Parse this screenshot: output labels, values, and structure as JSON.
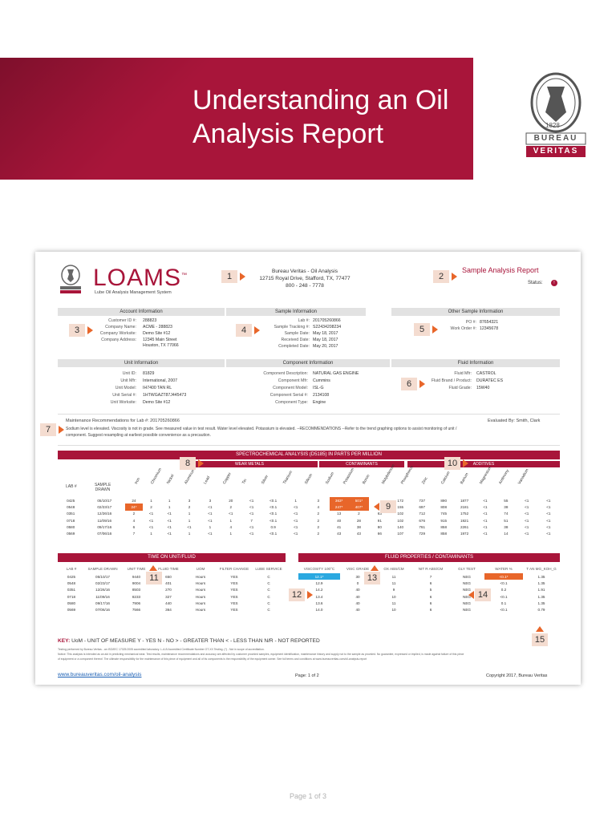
{
  "banner": {
    "title_line1": "Understanding an Oil",
    "title_line2": "Analysis Report"
  },
  "bv_logo": {
    "top_text": "BUREAU VERITAS",
    "year": "1828",
    "word1": "BUREAU",
    "word2": "VERITAS"
  },
  "colors": {
    "brand_red": "#a8153a",
    "accent_orange": "#e8662a",
    "highlight_blue": "#2aa8e0",
    "badge_bg": "#f4dcd0"
  },
  "report": {
    "brand": {
      "name": "LOAMS",
      "tm": "™",
      "subtitle": "Lube Oil Analysis Management System"
    },
    "lab": {
      "name": "Bureau Veritas - Oil Analysis",
      "address": "12715 Royal Drive, Stafford, TX, 77477",
      "phone": "800 - 248 - 7778"
    },
    "title": "Sample Analysis Report",
    "status_label": "Status:",
    "status_icon": "!",
    "account": {
      "heading": "Account Information",
      "rows": [
        {
          "label": "Customer ID #:",
          "value": "288823"
        },
        {
          "label": "Company Name:",
          "value": "ACME - 288823"
        },
        {
          "label": "Company Worksite:",
          "value": "Demo Site #12"
        },
        {
          "label": "Company Address:",
          "value": "12345 Main Street"
        },
        {
          "label": "",
          "value": "Houston, TX 77066"
        }
      ]
    },
    "sample": {
      "heading": "Sample Information",
      "rows": [
        {
          "label": "Lab #:",
          "value": "201705260866"
        },
        {
          "label": "Sample Tracking #:",
          "value": "S22434208234"
        },
        {
          "label": "Sample Date:",
          "value": "May 18, 2017"
        },
        {
          "label": "Received Date:",
          "value": "May 18, 2017"
        },
        {
          "label": "Completed Date:",
          "value": "May 20, 2017"
        }
      ]
    },
    "other": {
      "heading": "Other Sample Information",
      "rows": [
        {
          "label": "PO #:",
          "value": "87654321"
        },
        {
          "label": "Work Order #:",
          "value": "12345678"
        }
      ]
    },
    "unit": {
      "heading": "Unit Information",
      "rows": [
        {
          "label": "Unit ID:",
          "value": "81829"
        },
        {
          "label": "Unit Mfr:",
          "value": "International, 2007"
        },
        {
          "label": "Unit Model:",
          "value": "IH7400 TAN RL"
        },
        {
          "label": "Unit Serial #:",
          "value": "1HTWGAZT87J445473"
        },
        {
          "label": "Unit Worksite:",
          "value": "Demo Site #12"
        }
      ]
    },
    "component": {
      "heading": "Component Information",
      "rows": [
        {
          "label": "Component Description:",
          "value": "NATURAL GAS ENGINE"
        },
        {
          "label": "Component Mfr:",
          "value": "Cummins"
        },
        {
          "label": "Component Model:",
          "value": "ISL-G"
        },
        {
          "label": "Component Serial #:",
          "value": "2134108"
        },
        {
          "label": "Component Type:",
          "value": "Engine"
        }
      ]
    },
    "fluid": {
      "heading": "Fluid Information",
      "rows": [
        {
          "label": "Fluid Mfr:",
          "value": "CASTROL"
        },
        {
          "label": "Fluid Brand / Product:",
          "value": "DURATEC ES"
        },
        {
          "label": "Fluid Grade:",
          "value": "15W40"
        }
      ]
    },
    "maintenance": {
      "heading": "Maintenance Recommendations for Lab #: 201705260866",
      "evaluated": "Evaluated By: Smith, Clark",
      "line1": "Sodium level is elevated. Viscosity is not in grade. See measured value in test result. Water level elevated. Potassium is elevated. --RECOMMENDATIONS --Refer to the trend graphing options to assist monitoring of unit /",
      "line2": "component. Suggest resampling at earliest possible convenience as a precaution."
    },
    "spectro": {
      "title": "SPECTROCHEMICAL ANALYSIS (D5185) IN PARTS PER MILLION",
      "group_wear": "WEAR METALS",
      "group_contam": "CONTAMINANTS",
      "group_add": "ADDITIVES",
      "headers": [
        "LAB #",
        "SAMPLE DRAWN",
        "Iron",
        "Chromium",
        "Nickel",
        "Aluminum",
        "Lead",
        "Copper",
        "Tin",
        "Silver",
        "Titanium",
        "Silicon",
        "Sodium",
        "Potassium",
        "Boron",
        "Molybdenum",
        "Phosphorus",
        "Zinc",
        "Calcium",
        "Barium",
        "Magnesium",
        "Antimony",
        "Vanadium"
      ],
      "rows": [
        [
          "0425",
          "05/10/17",
          "24",
          "1",
          "1",
          "3",
          "3",
          "20",
          "<1",
          "<0.1",
          "1",
          "3",
          "363*",
          "501*",
          "",
          "172",
          "737",
          "890",
          "1877",
          "<1",
          "55",
          "<1",
          "<1"
        ],
        [
          "0548",
          "02/23/17",
          "24*",
          "2",
          "1",
          "2",
          "<1",
          "2",
          "<1",
          "<0.1",
          "<1",
          "4",
          "247*",
          "407*",
          "",
          "155",
          "697",
          "808",
          "2181",
          "<1",
          "38",
          "<1",
          "<1"
        ],
        [
          "0351",
          "12/26/16",
          "2",
          "<1",
          "<1",
          "1",
          "<1",
          "<1",
          "<1",
          "<0.1",
          "<1",
          "2",
          "13",
          "2",
          "63",
          "102",
          "712",
          "745",
          "1752",
          "<1",
          "74",
          "<1",
          "<1"
        ],
        [
          "0718",
          "11/09/16",
          "4",
          "<1",
          "<1",
          "1",
          "<1",
          "1",
          "7",
          "<0.1",
          "<1",
          "2",
          "40",
          "28",
          "91",
          "102",
          "676",
          "915",
          "1921",
          "<1",
          "51",
          "<1",
          "<1"
        ],
        [
          "0580",
          "09/17/16",
          "6",
          "<1",
          "<1",
          "<1",
          "1",
          "4",
          "<1",
          "0.9",
          "<1",
          "2",
          "41",
          "38",
          "80",
          "140",
          "761",
          "858",
          "2261",
          "<1",
          "38",
          "<1",
          "<1"
        ],
        [
          "0569",
          "07/06/16",
          "7",
          "1",
          "<1",
          "1",
          "<1",
          "1",
          "<1",
          "<0.1",
          "<1",
          "2",
          "43",
          "43",
          "66",
          "107",
          "729",
          "858",
          "1972",
          "<1",
          "14",
          "<1",
          "<1"
        ]
      ]
    },
    "time_table": {
      "title": "TIME ON UNIT/FLUID",
      "headers": [
        "LAB #",
        "SAMPLE DRAWN",
        "UNIT TIME",
        "FLUID TIME",
        "UOM",
        "FILTER CHANGE",
        "LUBE SERVICE"
      ],
      "rows": [
        [
          "0425",
          "05/10/17",
          "9440",
          "650",
          "Hours",
          "YES",
          "C"
        ],
        [
          "0548",
          "02/23/17",
          "9004",
          "401",
          "Hours",
          "YES",
          "C"
        ],
        [
          "0351",
          "12/26/16",
          "8503",
          "270",
          "Hours",
          "YES",
          "C"
        ],
        [
          "0718",
          "11/09/16",
          "8233",
          "327",
          "Hours",
          "YES",
          "C"
        ],
        [
          "0580",
          "09/17/16",
          "7906",
          "440",
          "Hours",
          "YES",
          "C"
        ],
        [
          "0569",
          "07/06/16",
          "7566",
          "364",
          "Hours",
          "YES",
          "C"
        ]
      ]
    },
    "fluid_table": {
      "title": "FLUID PROPERTIES / CONTAMINANTS",
      "headers": [
        "VISCOSITY 100°C",
        "VISC GRADE",
        "OX ABS/CM",
        "NIT R ABS/CM",
        "GLY TEST",
        "WATER %",
        "T AN MG_KOH_G"
      ],
      "rows": [
        [
          "12.1*",
          "30",
          "11",
          "7",
          "NEG",
          "<0.1*",
          "1.35"
        ],
        [
          "12.9",
          "0",
          "11",
          "6",
          "NEG",
          "<0.1",
          "1.35"
        ],
        [
          "14.2",
          "40",
          "9",
          "5",
          "NEG",
          "0.2",
          "1.91"
        ],
        [
          "13.4",
          "40",
          "10",
          "6",
          "NEG",
          "<0.1",
          "1.35"
        ],
        [
          "13.6",
          "40",
          "11",
          "6",
          "NEG",
          "0.1",
          "1.35"
        ],
        [
          "14.0",
          "40",
          "10",
          "6",
          "NEG",
          "<0.1",
          "0.79"
        ]
      ]
    },
    "key": {
      "label": "KEY:",
      "text": "UoM - UNIT OF MEASURE   Y - YES   N - NO   > - GREATER THAN   < - LESS THAN   N/R - NOT REPORTED"
    },
    "fineprint1": "Testing performed by Bureau Veritas - an ISO/IEC 17025:2005 accredited laboratory. L-A-B Accredited Certificate Number OT-XX Testing. (*) - Not in scope of accreditation.",
    "fineprint2": "Notice: This analysis is intended as an aid in predicting mechanical wear. Test results, maintenance recommendations and accuracy are affected by customer provided samples, equipment identification, maintenance history and supply not to the sample as provided. No guarantee, expressed or implied, is made against failure of this piece",
    "fineprint3": "of equipment or a component thereof. The ultimate responsibility for the maintenance of this piece of equipment and all of its components is the responsibility of the equipment owner. See full terms and conditions at www.bureauveritas.com/oil-analysis-report",
    "footer_link": "www.bureauveritas.com/oil-analysis",
    "footer_page": "Page: 1 of 2",
    "footer_copy": "Copyright 2017, Bureau Veritas"
  },
  "callouts": [
    "1",
    "2",
    "3",
    "4",
    "5",
    "6",
    "7",
    "8",
    "9",
    "10",
    "11",
    "12",
    "13",
    "14",
    "15"
  ],
  "page_footer": "Page 1 of 3"
}
